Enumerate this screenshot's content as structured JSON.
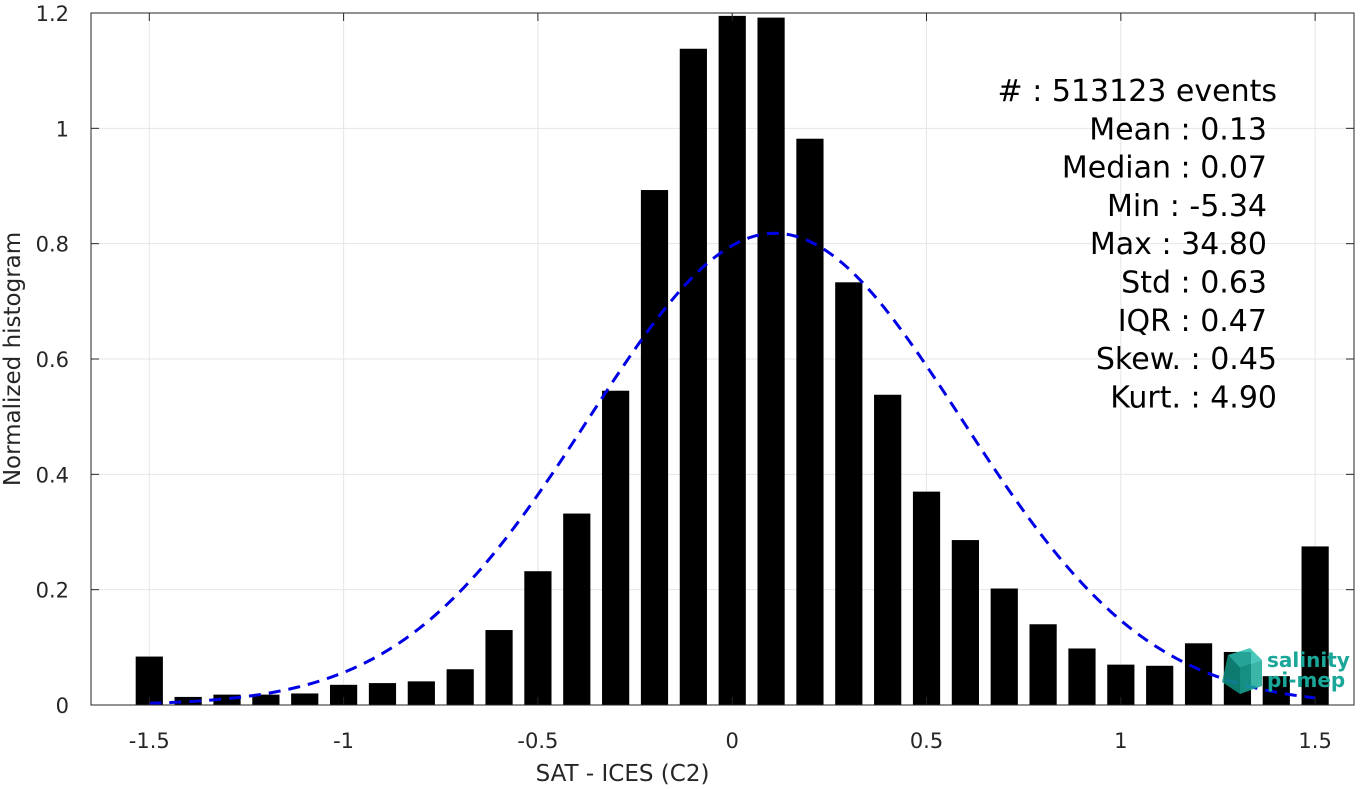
{
  "chart_data": {
    "type": "bar",
    "xlabel": "SAT - ICES (C2)",
    "ylabel": "Normalized histogram",
    "xlim": [
      -1.65,
      1.6
    ],
    "ylim": [
      0,
      1.2
    ],
    "xticks": [
      -1.5,
      -1,
      -0.5,
      0,
      0.5,
      1,
      1.5
    ],
    "xtick_labels": [
      "-1.5",
      "-1",
      "-0.5",
      "0",
      "0.5",
      "1",
      "1.5"
    ],
    "yticks": [
      0,
      0.2,
      0.4,
      0.6,
      0.8,
      1,
      1.2
    ],
    "ytick_labels": [
      "0",
      "0.2",
      "0.4",
      "0.6",
      "0.8",
      "1",
      "1.2"
    ],
    "grid": true,
    "bar_width": 0.07,
    "bars": {
      "x": [
        -1.5,
        -1.4,
        -1.3,
        -1.2,
        -1.1,
        -1.0,
        -0.9,
        -0.8,
        -0.7,
        -0.6,
        -0.5,
        -0.4,
        -0.3,
        -0.2,
        -0.1,
        0.0,
        0.1,
        0.2,
        0.3,
        0.4,
        0.5,
        0.6,
        0.7,
        0.8,
        0.9,
        1.0,
        1.1,
        1.2,
        1.3,
        1.4,
        1.5
      ],
      "values": [
        0.084,
        0.014,
        0.018,
        0.018,
        0.02,
        0.035,
        0.038,
        0.041,
        0.062,
        0.13,
        0.232,
        0.332,
        0.545,
        0.893,
        1.138,
        1.195,
        1.192,
        0.982,
        0.733,
        0.538,
        0.37,
        0.286,
        0.202,
        0.14,
        0.098,
        0.07,
        0.068,
        0.107,
        0.092,
        0.05,
        0.275
      ],
      "color": "#000000"
    },
    "fit_curve": {
      "style": "dashed",
      "color": "#0000e6",
      "mean": 0.11,
      "peak": 0.818,
      "sigma": 0.48,
      "x_range": [
        -1.5,
        1.5
      ]
    },
    "stats": [
      {
        "label": "#  : 513123 events"
      },
      {
        "label": "Mean : 0.13"
      },
      {
        "label": "Median : 0.07"
      },
      {
        "label": "Min : -5.34"
      },
      {
        "label": "Max : 34.80"
      },
      {
        "label": "Std : 0.63"
      },
      {
        "label": "IQR : 0.47"
      },
      {
        "label": "Skew. : 0.45"
      },
      {
        "label": "Kurt. : 4.90"
      }
    ]
  },
  "logo": {
    "line1": "salinity",
    "line2": "pi-mep",
    "color": "#1aa699"
  }
}
